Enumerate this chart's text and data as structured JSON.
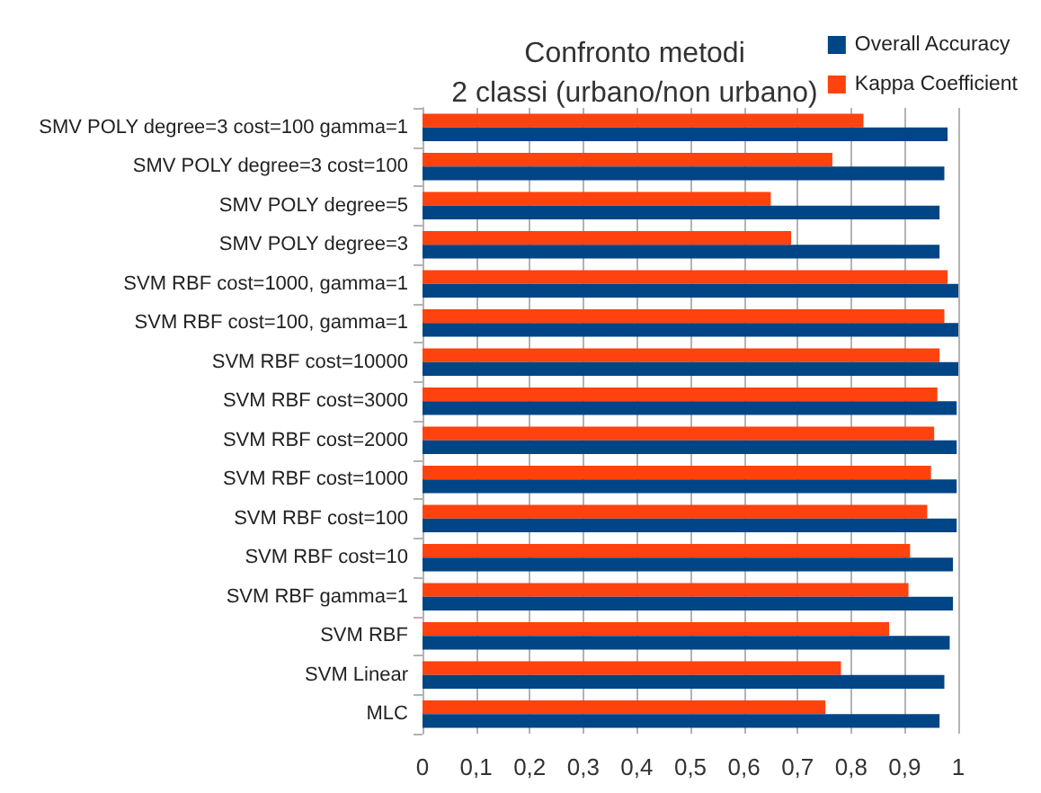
{
  "chart_data": {
    "type": "bar",
    "orientation": "horizontal",
    "title": "Confronto metodi\n2 classi (urbano/non urbano)",
    "categories": [
      "SMV POLY degree=3 cost=100 gamma=1",
      "SMV POLY degree=3 cost=100",
      "SMV POLY degree=5",
      "SMV POLY degree=3",
      "SVM RBF cost=1000, gamma=1",
      "SVM RBF cost=100, gamma=1",
      "SVM RBF cost=10000",
      "SVM RBF cost=3000",
      "SVM RBF cost=2000",
      "SVM RBF cost=1000",
      "SVM RBF cost=100",
      "SVM RBF cost=10",
      "SVM RBF gamma=1",
      "SVM RBF",
      "SVM Linear",
      "MLC"
    ],
    "series": [
      {
        "name": "Overall Accuracy",
        "color": "#004586",
        "values": [
          0.98,
          0.974,
          0.965,
          0.965,
          1.0,
          1.0,
          1.0,
          0.997,
          0.997,
          0.997,
          0.997,
          0.99,
          0.99,
          0.984,
          0.974,
          0.965
        ]
      },
      {
        "name": "Kappa Coefficient",
        "color": "#ff420e",
        "values": [
          0.823,
          0.765,
          0.65,
          0.688,
          0.98,
          0.974,
          0.965,
          0.961,
          0.955,
          0.949,
          0.942,
          0.91,
          0.907,
          0.871,
          0.781,
          0.752
        ]
      }
    ],
    "xlim": [
      0,
      1
    ],
    "xticks": [
      0,
      {
        "value": 0.1,
        "label": "0,1"
      },
      {
        "value": 0.2,
        "label": "0,2"
      },
      {
        "value": 0.3,
        "label": "0,3"
      },
      {
        "value": 0.4,
        "label": "0,4"
      },
      {
        "value": 0.5,
        "label": "0,5"
      },
      {
        "value": 0.6,
        "label": "0,6"
      },
      {
        "value": 0.7,
        "label": "0,7"
      },
      {
        "value": 0.8,
        "label": "0,8"
      },
      {
        "value": 0.9,
        "label": "0,9"
      },
      1
    ],
    "grid": "x",
    "legend": "top right"
  }
}
